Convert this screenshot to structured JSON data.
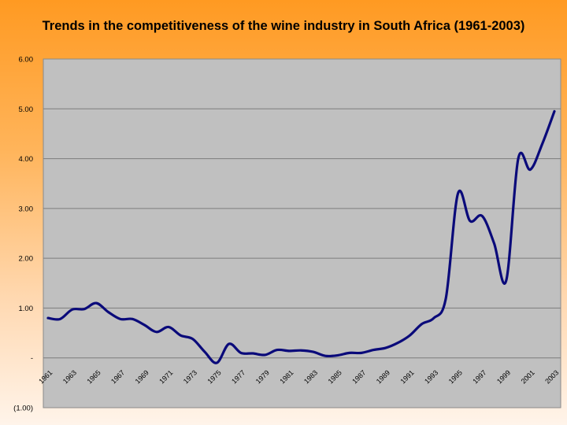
{
  "chart_data": {
    "type": "line",
    "title": "Trends in the competitiveness of the wine industry in South Africa (1961-2003)",
    "xlabel": "",
    "ylabel": "",
    "ylim": [
      -1,
      6
    ],
    "y_ticks": [
      "(1.00)",
      "-",
      "1.00",
      "2.00",
      "3.00",
      "4.00",
      "5.00",
      "6.00"
    ],
    "y_tick_values": [
      -1,
      0,
      1,
      2,
      3,
      4,
      5,
      6
    ],
    "x_ticks": [
      "1961",
      "1963",
      "1965",
      "1967",
      "1969",
      "1971",
      "1973",
      "1975",
      "1977",
      "1979",
      "1981",
      "1983",
      "1985",
      "1987",
      "1989",
      "1991",
      "1993",
      "1995",
      "1997",
      "1999",
      "2001",
      "2003"
    ],
    "grid": true,
    "series_color": "#0a0a7a",
    "plot_bg": "#c0c0c0",
    "x": [
      1961,
      1962,
      1963,
      1964,
      1965,
      1966,
      1967,
      1968,
      1969,
      1970,
      1971,
      1972,
      1973,
      1974,
      1975,
      1976,
      1977,
      1978,
      1979,
      1980,
      1981,
      1982,
      1983,
      1984,
      1985,
      1986,
      1987,
      1988,
      1989,
      1990,
      1991,
      1992,
      1993,
      1994,
      1995,
      1996,
      1997,
      1998,
      1999,
      2000,
      2001,
      2002,
      2003
    ],
    "values": [
      0.8,
      0.78,
      0.97,
      0.98,
      1.1,
      0.92,
      0.78,
      0.78,
      0.66,
      0.52,
      0.62,
      0.45,
      0.38,
      0.12,
      -0.1,
      0.28,
      0.1,
      0.09,
      0.06,
      0.16,
      0.14,
      0.15,
      0.12,
      0.04,
      0.05,
      0.1,
      0.1,
      0.16,
      0.2,
      0.3,
      0.45,
      0.68,
      0.8,
      1.2,
      3.3,
      2.75,
      2.85,
      2.3,
      1.55,
      4.0,
      3.78,
      4.3,
      4.95
    ]
  }
}
